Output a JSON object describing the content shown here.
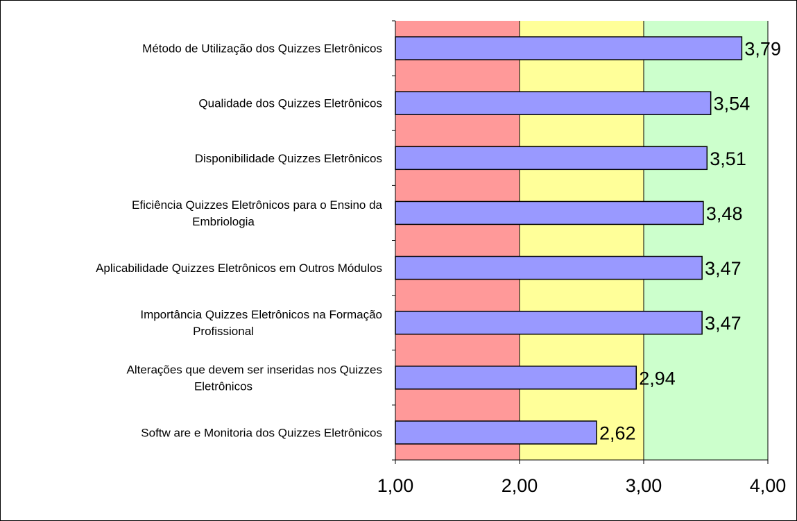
{
  "chart_data": {
    "type": "bar",
    "orientation": "horizontal",
    "categories": [
      [
        "Método de Utilização dos Quizzes Eletrônicos"
      ],
      [
        "Qualidade dos Quizzes Eletrônicos"
      ],
      [
        "Disponibilidade Quizzes Eletrônicos"
      ],
      [
        "Eficiência Quizzes Eletrônicos para o Ensino da",
        "Embriologia"
      ],
      [
        "Aplicabilidade Quizzes Eletrônicos em Outros Módulos"
      ],
      [
        "Importância Quizzes Eletrônicos na Formação",
        "Profissional"
      ],
      [
        "Alterações que devem ser inseridas nos Quizzes",
        "Eletrônicos"
      ],
      [
        "Softw are e Monitoria dos Quizzes Eletrônicos"
      ]
    ],
    "values": [
      3.79,
      3.54,
      3.51,
      3.48,
      3.47,
      3.47,
      2.94,
      2.62
    ],
    "value_labels": [
      "3,79",
      "3,54",
      "3,51",
      "3,48",
      "3,47",
      "3,47",
      "2,94",
      "2,62"
    ],
    "xlim": [
      1,
      4
    ],
    "xticks": [
      1,
      2,
      3,
      4
    ],
    "xtick_labels": [
      "1,00",
      "2,00",
      "3,00",
      "4,00"
    ],
    "background_bands": [
      {
        "from": 1,
        "to": 2,
        "color": "#ff9999"
      },
      {
        "from": 2,
        "to": 3,
        "color": "#ffff99"
      },
      {
        "from": 3,
        "to": 4,
        "color": "#ccffcc"
      }
    ],
    "bar_color": "#9999ff",
    "bar_border_color": "#000000",
    "grid": false,
    "legend": "none",
    "title": "",
    "xlabel": "",
    "ylabel": ""
  }
}
